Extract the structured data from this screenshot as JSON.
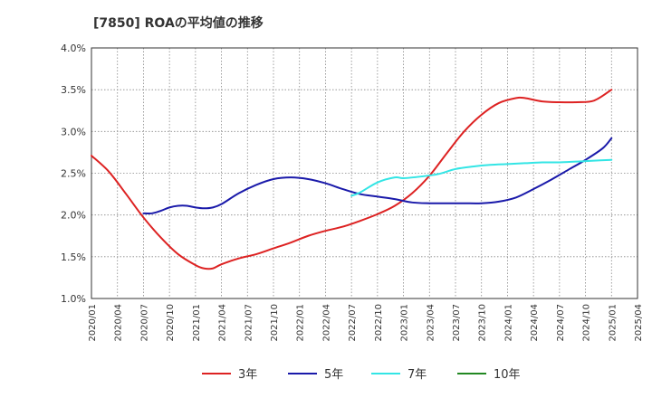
{
  "chart_data": {
    "type": "line",
    "title": "[7850]  ROAの平均値の推移",
    "xlabel": "",
    "ylabel": "",
    "x_ticks": [
      "2020/01",
      "2020/04",
      "2020/07",
      "2020/10",
      "2021/01",
      "2021/04",
      "2021/07",
      "2021/10",
      "2022/01",
      "2022/04",
      "2022/07",
      "2022/10",
      "2023/01",
      "2023/04",
      "2023/07",
      "2023/10",
      "2024/01",
      "2024/04",
      "2024/07",
      "2024/10",
      "2025/01",
      "2025/04"
    ],
    "y_ticks": [
      "1.0%",
      "1.5%",
      "2.0%",
      "2.5%",
      "3.0%",
      "3.5%",
      "4.0%"
    ],
    "ylim": [
      1.0,
      4.0
    ],
    "xlim": [
      "2020/01",
      "2025/04"
    ],
    "grid": true,
    "legend_position": "bottom",
    "series": [
      {
        "name": "3年",
        "color": "#dd2222",
        "points": [
          [
            "2020/01",
            2.71
          ],
          [
            "2020/03",
            2.52
          ],
          [
            "2020/05",
            2.25
          ],
          [
            "2020/07",
            1.97
          ],
          [
            "2020/09",
            1.73
          ],
          [
            "2020/11",
            1.53
          ],
          [
            "2021/01",
            1.4
          ],
          [
            "2021/02",
            1.36
          ],
          [
            "2021/03",
            1.36
          ],
          [
            "2021/04",
            1.41
          ],
          [
            "2021/06",
            1.48
          ],
          [
            "2021/08",
            1.53
          ],
          [
            "2021/10",
            1.6
          ],
          [
            "2021/12",
            1.67
          ],
          [
            "2022/02",
            1.75
          ],
          [
            "2022/04",
            1.81
          ],
          [
            "2022/06",
            1.86
          ],
          [
            "2022/08",
            1.93
          ],
          [
            "2022/10",
            2.01
          ],
          [
            "2022/12",
            2.11
          ],
          [
            "2023/02",
            2.26
          ],
          [
            "2023/04",
            2.47
          ],
          [
            "2023/06",
            2.74
          ],
          [
            "2023/08",
            3.0
          ],
          [
            "2023/10",
            3.2
          ],
          [
            "2023/12",
            3.34
          ],
          [
            "2024/02",
            3.4
          ],
          [
            "2024/03",
            3.4
          ],
          [
            "2024/05",
            3.36
          ],
          [
            "2024/07",
            3.35
          ],
          [
            "2024/09",
            3.35
          ],
          [
            "2024/11",
            3.37
          ],
          [
            "2025/01",
            3.5
          ]
        ]
      },
      {
        "name": "5年",
        "color": "#1a1aaa",
        "points": [
          [
            "2020/07",
            2.02
          ],
          [
            "2020/08",
            2.02
          ],
          [
            "2020/09",
            2.05
          ],
          [
            "2020/10",
            2.09
          ],
          [
            "2020/11",
            2.11
          ],
          [
            "2020/12",
            2.11
          ],
          [
            "2021/01",
            2.09
          ],
          [
            "2021/02",
            2.08
          ],
          [
            "2021/03",
            2.09
          ],
          [
            "2021/04",
            2.13
          ],
          [
            "2021/06",
            2.26
          ],
          [
            "2021/08",
            2.36
          ],
          [
            "2021/10",
            2.43
          ],
          [
            "2021/12",
            2.45
          ],
          [
            "2022/02",
            2.43
          ],
          [
            "2022/04",
            2.38
          ],
          [
            "2022/06",
            2.31
          ],
          [
            "2022/08",
            2.25
          ],
          [
            "2022/10",
            2.22
          ],
          [
            "2022/12",
            2.19
          ],
          [
            "2023/02",
            2.15
          ],
          [
            "2023/04",
            2.14
          ],
          [
            "2023/06",
            2.14
          ],
          [
            "2023/08",
            2.14
          ],
          [
            "2023/10",
            2.14
          ],
          [
            "2023/12",
            2.16
          ],
          [
            "2024/02",
            2.21
          ],
          [
            "2024/04",
            2.31
          ],
          [
            "2024/06",
            2.42
          ],
          [
            "2024/08",
            2.54
          ],
          [
            "2024/10",
            2.66
          ],
          [
            "2024/12",
            2.8
          ],
          [
            "2025/01",
            2.92
          ]
        ]
      },
      {
        "name": "7年",
        "color": "#33e5e5",
        "points": [
          [
            "2022/07",
            2.23
          ],
          [
            "2022/08",
            2.27
          ],
          [
            "2022/10",
            2.39
          ],
          [
            "2022/12",
            2.45
          ],
          [
            "2023/01",
            2.44
          ],
          [
            "2023/03",
            2.46
          ],
          [
            "2023/05",
            2.49
          ],
          [
            "2023/07",
            2.55
          ],
          [
            "2023/09",
            2.58
          ],
          [
            "2023/11",
            2.6
          ],
          [
            "2024/01",
            2.61
          ],
          [
            "2024/03",
            2.62
          ],
          [
            "2024/05",
            2.63
          ],
          [
            "2024/07",
            2.63
          ],
          [
            "2024/09",
            2.64
          ],
          [
            "2024/11",
            2.65
          ],
          [
            "2025/01",
            2.66
          ]
        ]
      },
      {
        "name": "10年",
        "color": "#228822",
        "points": []
      }
    ]
  }
}
